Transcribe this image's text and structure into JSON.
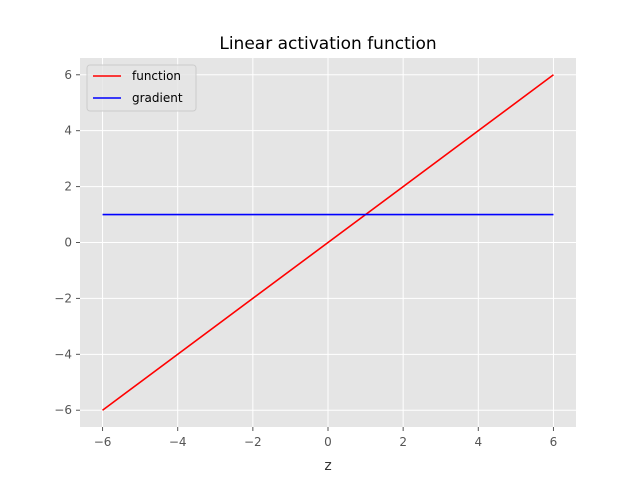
{
  "chart_data": {
    "type": "line",
    "title": "Linear activation function",
    "xlabel": "z",
    "ylabel": "",
    "xlim": [
      -6.6,
      6.6
    ],
    "ylim": [
      -6.6,
      6.6
    ],
    "xticks": [
      -6,
      -4,
      -2,
      0,
      2,
      4,
      6
    ],
    "yticks": [
      -6,
      -4,
      -2,
      0,
      2,
      4,
      6
    ],
    "grid": true,
    "legend_position": "top-left",
    "series": [
      {
        "name": "function",
        "color": "#ff0000",
        "x": [
          -6,
          6
        ],
        "y": [
          -6,
          6
        ]
      },
      {
        "name": "gradient",
        "color": "#0000ff",
        "x": [
          -6,
          6
        ],
        "y": [
          1,
          1
        ]
      }
    ]
  }
}
